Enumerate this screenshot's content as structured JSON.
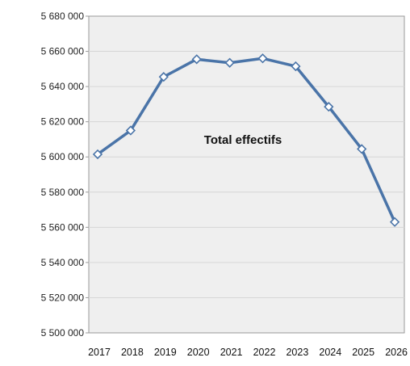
{
  "chart_data": {
    "type": "line",
    "title": "",
    "xlabel": "",
    "ylabel": "",
    "categories": [
      "2017",
      "2018",
      "2019",
      "2020",
      "2021",
      "2022",
      "2023",
      "2024",
      "2025",
      "2026"
    ],
    "series": [
      {
        "values": [
          5601500,
          5615000,
          5645500,
          5655500,
          5653500,
          5656000,
          5651500,
          5628500,
          5604500,
          5563000
        ]
      }
    ],
    "ylim": [
      5500000,
      5680000
    ],
    "y_ticks": [
      5500000,
      5520000,
      5540000,
      5560000,
      5580000,
      5600000,
      5620000,
      5640000,
      5660000,
      5680000
    ],
    "y_tick_labels": [
      "5 500 000",
      "5 520 000",
      "5 540 000",
      "5 560 000",
      "5 580 000",
      "5 600 000",
      "5 620 000",
      "5 640 000",
      "5 660 000",
      "5 680 000"
    ],
    "annotation": "Total effectifs",
    "grid": true,
    "legend": "none",
    "colors": {
      "line": "#4a74a8",
      "marker_fill": "#ffffff",
      "plot_background": "#efefef",
      "gridline": "#d6d6d6",
      "axis": "#9a9a9a"
    }
  }
}
